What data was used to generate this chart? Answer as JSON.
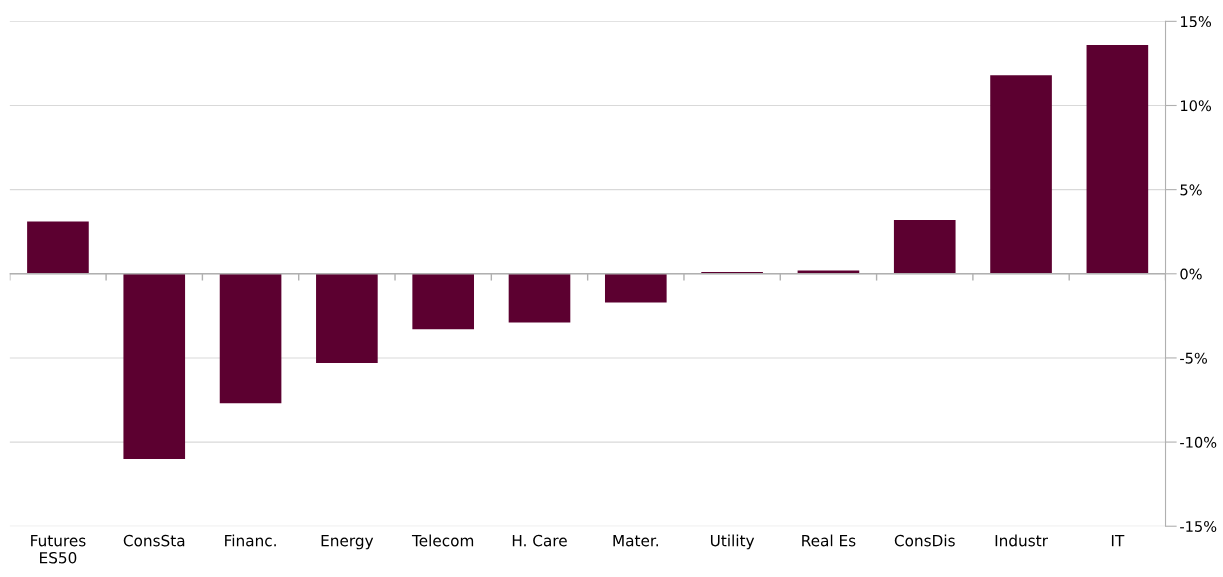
{
  "chart_data": {
    "type": "bar",
    "categories": [
      "Futures\nES50",
      "ConsSta",
      "Financ.",
      "Energy",
      "Telecom",
      "H. Care",
      "Mater.",
      "Utility",
      "Real Es",
      "ConsDis",
      "Industr",
      "IT"
    ],
    "values": [
      3.1,
      -11.0,
      -7.7,
      -5.3,
      -3.3,
      -2.9,
      -1.7,
      0.1,
      0.2,
      3.2,
      11.8,
      13.6
    ],
    "color": "#5c0030",
    "ylim": [
      -15,
      15
    ],
    "yticks": [
      {
        "value": -15,
        "label": "-15%"
      },
      {
        "value": -10,
        "label": "-10%"
      },
      {
        "value": -5,
        "label": "-5%"
      },
      {
        "value": 0,
        "label": "0%"
      },
      {
        "value": 5,
        "label": "5%"
      },
      {
        "value": 10,
        "label": "10%"
      },
      {
        "value": 15,
        "label": "15%"
      }
    ],
    "grid": "y"
  }
}
